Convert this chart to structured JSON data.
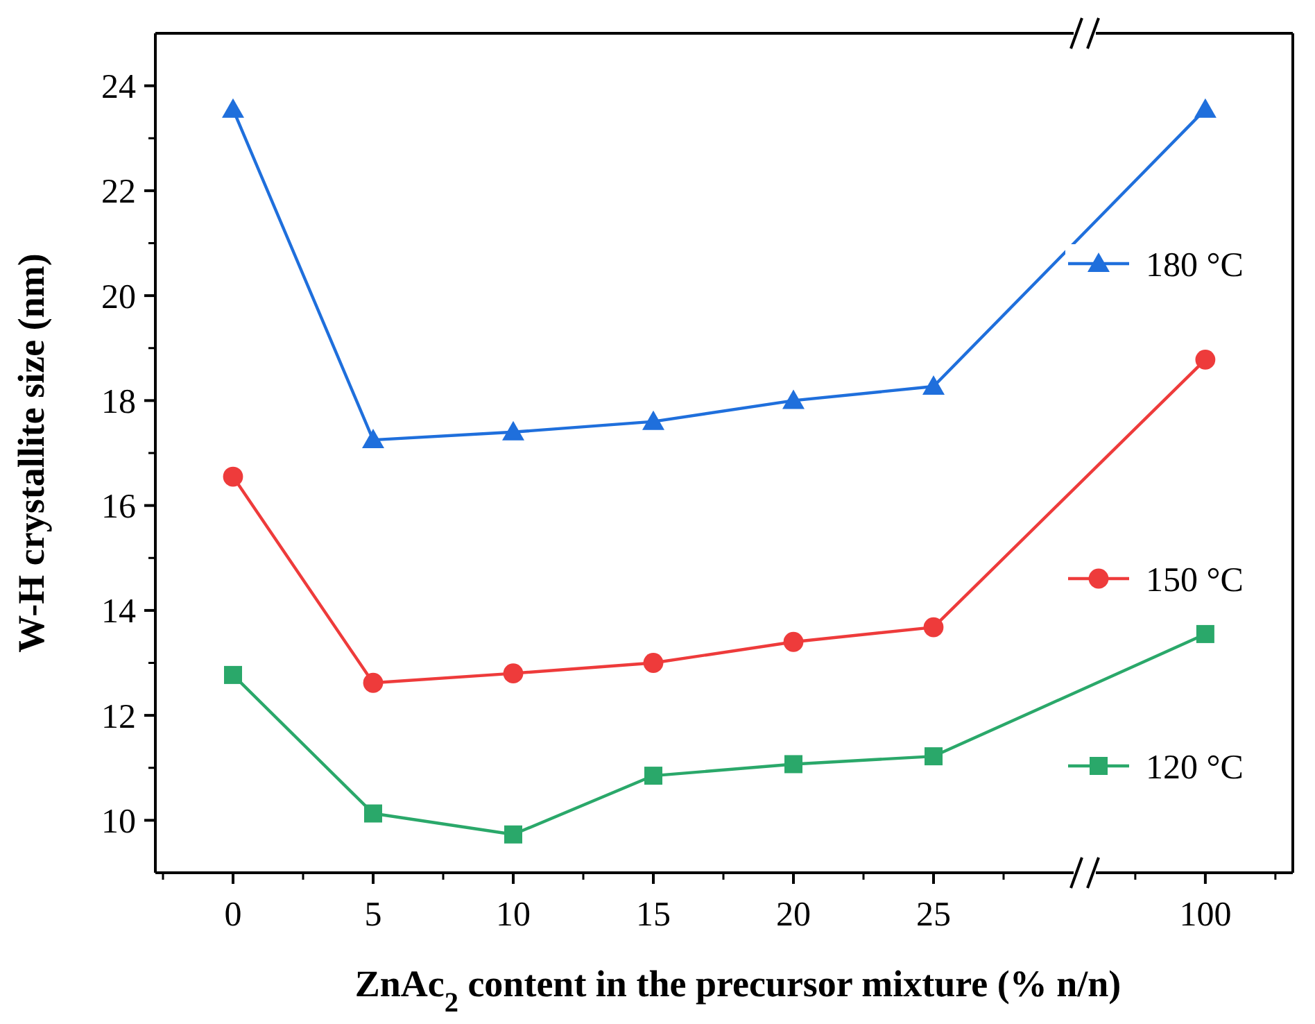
{
  "chart_data": {
    "type": "line",
    "xlabel": "ZnAc$_{2}$ content in the precursor mixture (% n/n)",
    "ylabel": "W-H crystallite size (nm)",
    "categories": [
      "0",
      "5",
      "10",
      "15",
      "20",
      "25",
      "100"
    ],
    "ylim": [
      9,
      25
    ],
    "yticks": [
      10,
      12,
      14,
      16,
      18,
      20,
      22,
      24
    ],
    "grid": false,
    "legend": "right",
    "line_style": "solid",
    "series": [
      {
        "name": "180 °C",
        "color": "#1f6fdc",
        "marker": "triangle",
        "values": [
          23.55,
          17.25,
          17.4,
          17.6,
          18.0,
          18.27,
          23.55
        ]
      },
      {
        "name": "150 °C",
        "color": "#ee3b3b",
        "marker": "circle",
        "values": [
          16.55,
          12.62,
          12.8,
          13.0,
          13.4,
          13.68,
          18.78
        ]
      },
      {
        "name": "120 °C",
        "color": "#2aa86a",
        "marker": "square",
        "values": [
          12.77,
          10.13,
          9.73,
          10.85,
          11.07,
          11.22,
          13.55
        ]
      }
    ]
  }
}
